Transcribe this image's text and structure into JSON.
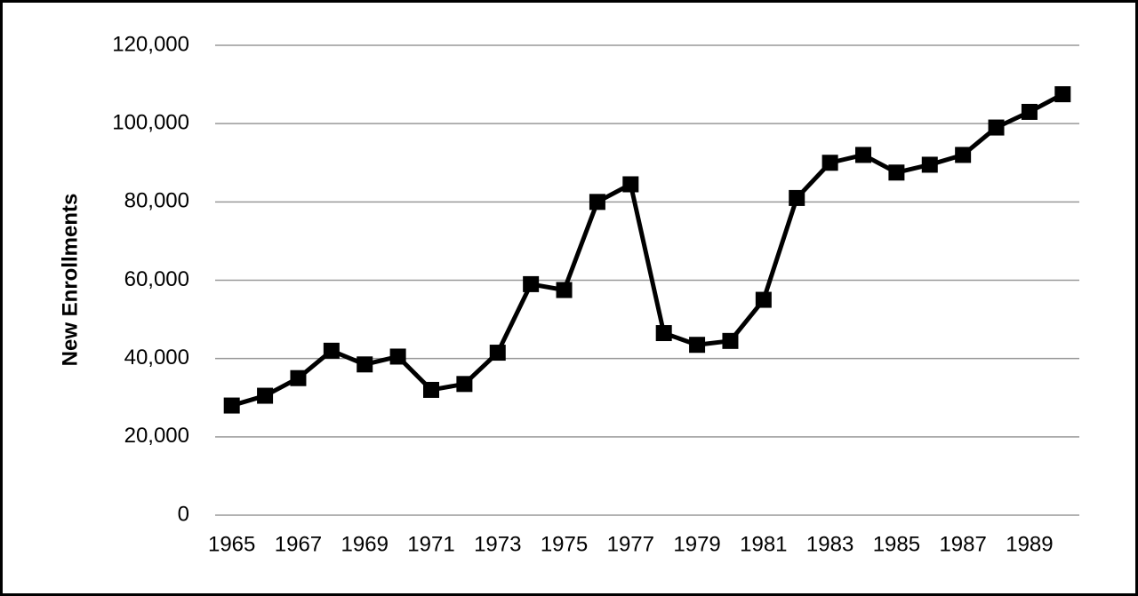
{
  "chart_data": {
    "type": "line",
    "y_label": "New Enrollments",
    "categories": [
      "1965",
      null,
      "1967",
      null,
      "1969",
      null,
      "1971",
      null,
      "1973",
      null,
      "1975",
      null,
      "1977",
      null,
      "1979",
      null,
      "1981",
      null,
      "1983",
      null,
      "1985",
      null,
      "1987",
      null,
      "1989",
      null
    ],
    "values": [
      28000,
      30500,
      35000,
      42000,
      38500,
      40500,
      32000,
      33500,
      41500,
      59000,
      57500,
      80000,
      84500,
      46500,
      43500,
      44500,
      55000,
      81000,
      90000,
      92000,
      87500,
      89500,
      92000,
      99000,
      103000,
      107500
    ],
    "color": "#000000",
    "ylim": [
      0,
      120000
    ],
    "yticks": [
      0,
      {
        "value": 20000,
        "label": "20,000"
      },
      {
        "value": 40000,
        "label": "40,000"
      },
      {
        "value": 60000,
        "label": "60,000"
      },
      {
        "value": 80000,
        "label": "80,000"
      },
      {
        "value": 100000,
        "label": "100,000"
      },
      {
        "value": 120000,
        "label": "120,000"
      }
    ],
    "grid": true
  }
}
